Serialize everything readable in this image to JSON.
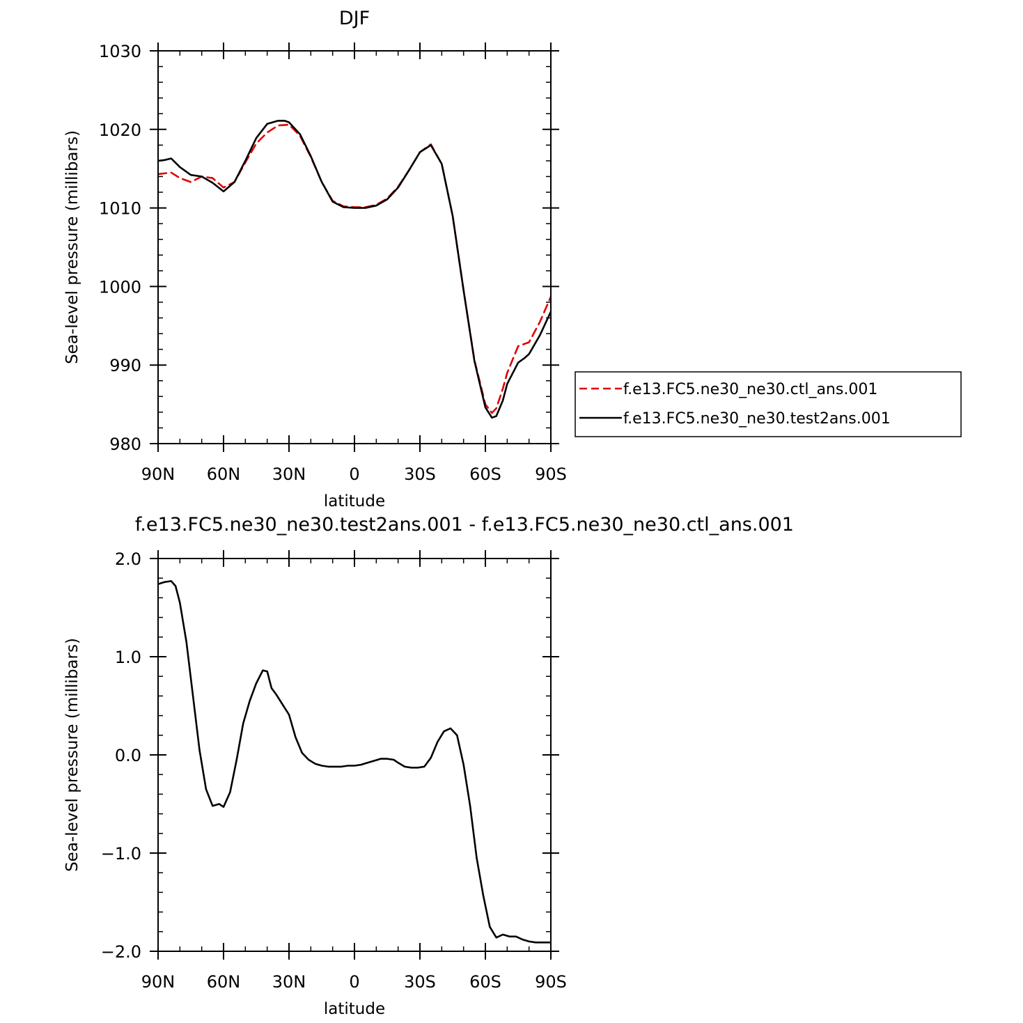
{
  "chart_data": [
    {
      "type": "line",
      "title": "DJF",
      "xlabel": "latitude",
      "ylabel": "Sea-level pressure (millibars)",
      "xlim": [
        -90,
        90
      ],
      "ylim": [
        980,
        1030
      ],
      "x_ticks": [
        -90,
        -60,
        -30,
        0,
        30,
        60,
        90
      ],
      "x_tick_labels": [
        "90N",
        "60N",
        "30N",
        "0",
        "30S",
        "60S",
        "90S"
      ],
      "y_ticks": [
        980,
        990,
        1000,
        1010,
        1020,
        1030
      ],
      "y_tick_labels": [
        "980",
        "990",
        "1000",
        "1010",
        "1020",
        "1030"
      ],
      "legend_position": "right",
      "series": [
        {
          "name": "f.e13.FC5.ne30_ne30.ctl_ans.001",
          "color": "#e00000",
          "dash": "dashed",
          "x": [
            -90,
            -84,
            -80,
            -75,
            -70,
            -65,
            -60,
            -55,
            -50,
            -45,
            -40,
            -35,
            -30,
            -25,
            -20,
            -15,
            -10,
            -5,
            0,
            5,
            10,
            15,
            20,
            25,
            30,
            35,
            40,
            45,
            50,
            55,
            60,
            63,
            65,
            68,
            70,
            75,
            80,
            85,
            90
          ],
          "y": [
            1014.3,
            1014.5,
            1013.8,
            1013.3,
            1014.0,
            1013.8,
            1012.6,
            1013.3,
            1015.8,
            1018.2,
            1019.6,
            1020.5,
            1020.6,
            1019.2,
            1016.5,
            1013.3,
            1010.9,
            1010.2,
            1010.1,
            1010.1,
            1010.4,
            1011.2,
            1012.7,
            1014.8,
            1017.1,
            1018.1,
            1015.6,
            1009.0,
            999.5,
            990.6,
            985.0,
            983.9,
            984.5,
            987.0,
            989.0,
            992.4,
            992.9,
            995.5,
            998.7
          ]
        },
        {
          "name": "f.e13.FC5.ne30_ne30.test2ans.001",
          "color": "#000000",
          "dash": "solid",
          "x": [
            -90,
            -87,
            -84,
            -80,
            -75,
            -70,
            -65,
            -60,
            -55,
            -50,
            -45,
            -40,
            -35,
            -32,
            -30,
            -25,
            -20,
            -15,
            -10,
            -5,
            0,
            5,
            10,
            15,
            20,
            25,
            30,
            35,
            40,
            45,
            50,
            55,
            60,
            63,
            65,
            68,
            70,
            75,
            78,
            80,
            85,
            90
          ],
          "y": [
            1016.0,
            1016.1,
            1016.3,
            1015.2,
            1014.2,
            1014.0,
            1013.2,
            1012.1,
            1013.3,
            1016.0,
            1018.9,
            1020.7,
            1021.1,
            1021.1,
            1020.9,
            1019.4,
            1016.6,
            1013.3,
            1010.8,
            1010.1,
            1010.0,
            1010.0,
            1010.3,
            1011.1,
            1012.6,
            1014.8,
            1017.1,
            1018.0,
            1015.6,
            1009.0,
            999.5,
            990.5,
            984.6,
            983.3,
            983.5,
            985.5,
            987.6,
            990.3,
            990.9,
            991.4,
            993.8,
            996.8
          ]
        }
      ]
    },
    {
      "type": "line",
      "title": "f.e13.FC5.ne30_ne30.test2ans.001 - f.e13.FC5.ne30_ne30.ctl_ans.001",
      "xlabel": "latitude",
      "ylabel": "Sea-level pressure (millibars)",
      "xlim": [
        -90,
        90
      ],
      "ylim": [
        -2.0,
        2.0
      ],
      "x_ticks": [
        -90,
        -60,
        -30,
        0,
        30,
        60,
        90
      ],
      "x_tick_labels": [
        "90N",
        "60N",
        "30N",
        "0",
        "30S",
        "60S",
        "90S"
      ],
      "y_ticks": [
        -2.0,
        -1.0,
        0.0,
        1.0,
        2.0
      ],
      "y_tick_labels": [
        "−2.0",
        "−1.0",
        "0.0",
        "1.0",
        "2.0"
      ],
      "series": [
        {
          "color": "#000000",
          "dash": "solid",
          "x": [
            -90,
            -87,
            -84,
            -82,
            -80,
            -77,
            -74,
            -71,
            -68,
            -65,
            -62,
            -60,
            -57,
            -54,
            -51,
            -48,
            -45,
            -42,
            -40,
            -38,
            -36,
            -34,
            -32,
            -30,
            -27,
            -24,
            -21,
            -18,
            -15,
            -12,
            -9,
            -6,
            -3,
            0,
            3,
            6,
            9,
            12,
            15,
            18,
            20,
            23,
            26,
            29,
            32,
            35,
            38,
            41,
            44,
            47,
            50,
            53,
            56,
            59,
            62,
            65,
            68,
            71,
            74,
            77,
            80,
            83,
            86,
            88,
            90
          ],
          "y": [
            1.74,
            1.76,
            1.77,
            1.72,
            1.55,
            1.15,
            0.6,
            0.05,
            -0.35,
            -0.52,
            -0.5,
            -0.53,
            -0.38,
            -0.05,
            0.32,
            0.55,
            0.73,
            0.86,
            0.85,
            0.68,
            0.62,
            0.55,
            0.48,
            0.41,
            0.18,
            0.02,
            -0.05,
            -0.09,
            -0.11,
            -0.12,
            -0.12,
            -0.12,
            -0.11,
            -0.11,
            -0.1,
            -0.08,
            -0.06,
            -0.04,
            -0.04,
            -0.05,
            -0.08,
            -0.12,
            -0.13,
            -0.13,
            -0.12,
            -0.03,
            0.13,
            0.24,
            0.27,
            0.2,
            -0.1,
            -0.52,
            -1.05,
            -1.43,
            -1.75,
            -1.86,
            -1.83,
            -1.85,
            -1.85,
            -1.88,
            -1.9,
            -1.91,
            -1.91,
            -1.91,
            -1.91
          ]
        }
      ]
    }
  ]
}
